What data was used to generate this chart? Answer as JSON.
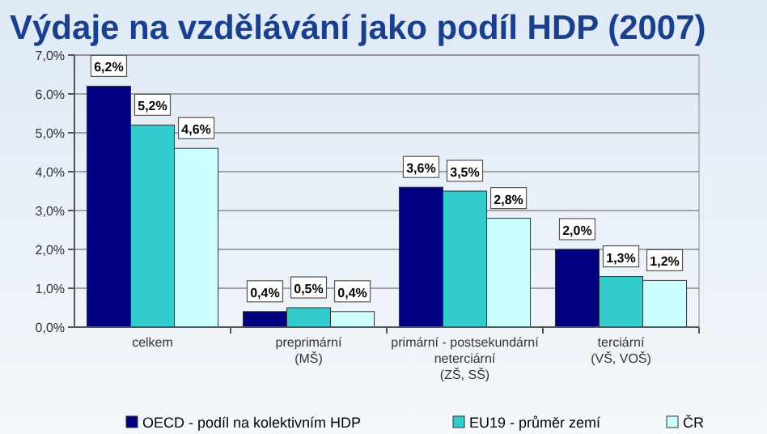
{
  "chart_data": {
    "type": "bar",
    "title": "Výdaje na vzdělávání jako podíl HDP (2007)",
    "categories": [
      "celkem",
      "preprimární\n(MŠ)",
      "primární - postsekundární\nneterciární\n(ZŠ, SŠ)",
      "terciární\n(VŠ, VOŠ)"
    ],
    "series": [
      {
        "name": "OECD - podíl na kolektivním HDP",
        "color": "#000080",
        "values": [
          6.2,
          0.4,
          3.6,
          2.0
        ],
        "value_labels": [
          "6,2%",
          "0,4%",
          "3,6%",
          "2,0%"
        ]
      },
      {
        "name": "EU19 - průměr zemí",
        "color": "#33cccc",
        "values": [
          5.2,
          0.5,
          3.5,
          1.3
        ],
        "value_labels": [
          "5,2%",
          "0,5%",
          "3,5%",
          "1,3%"
        ]
      },
      {
        "name": "ČR",
        "color": "#ccffff",
        "values": [
          4.6,
          0.4,
          2.8,
          1.2
        ],
        "value_labels": [
          "4,6%",
          "0,4%",
          "2,8%",
          "1,2%"
        ]
      }
    ],
    "ylim": [
      0,
      7
    ],
    "yticks": [
      {
        "value": 0,
        "label": "0,0%"
      },
      {
        "value": 1,
        "label": "1,0%"
      },
      {
        "value": 2,
        "label": "2,0%"
      },
      {
        "value": 3,
        "label": "3,0%"
      },
      {
        "value": 4,
        "label": "4,0%"
      },
      {
        "value": 5,
        "label": "5,0%"
      },
      {
        "value": 6,
        "label": "6,0%"
      },
      {
        "value": 7,
        "label": "7,0%"
      }
    ],
    "grid": "y",
    "legend": "bottom"
  }
}
